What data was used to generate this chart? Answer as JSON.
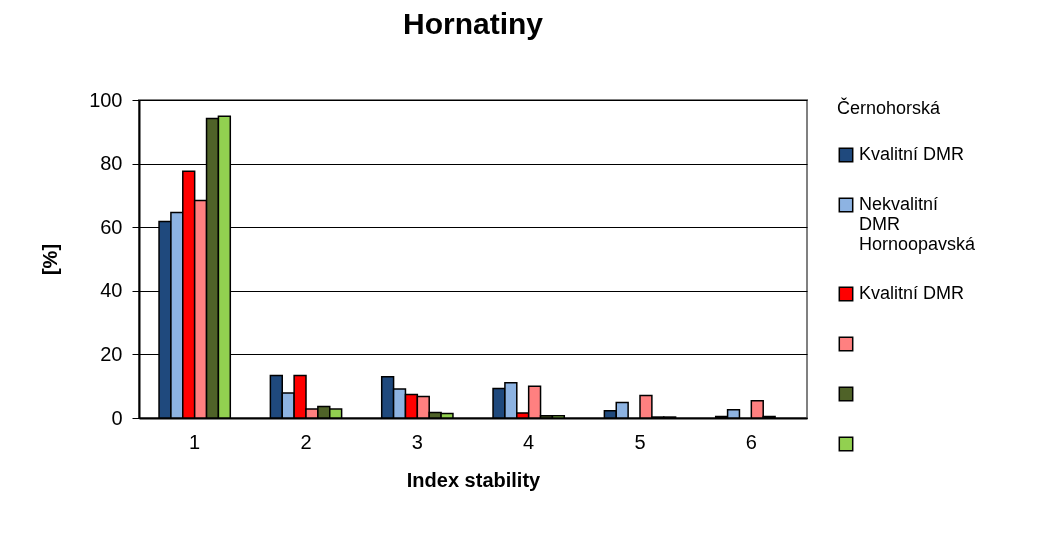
{
  "chart_data": {
    "type": "bar",
    "title": "Hornatiny",
    "xlabel": "Index stability",
    "ylabel": "[%]",
    "legend_title": "Černohorská",
    "categories": [
      "1",
      "2",
      "3",
      "4",
      "5",
      "6"
    ],
    "series": [
      {
        "name": "Kvalitní DMR",
        "color": "#1f497d",
        "values": [
          61.8,
          13.4,
          13.0,
          9.3,
          2.3,
          0.5
        ]
      },
      {
        "name": "Nekvalitní DMR Hornoopavská",
        "color": "#8db3e2",
        "values": [
          64.6,
          7.9,
          9.1,
          11.1,
          4.9,
          2.6
        ]
      },
      {
        "name": "Kvalitní DMR",
        "color": "#ff0000",
        "values": [
          77.6,
          13.4,
          7.4,
          1.6,
          null,
          null
        ]
      },
      {
        "color": "#ff8080",
        "values": [
          68.4,
          2.8,
          6.8,
          10.0,
          7.1,
          5.4
        ]
      },
      {
        "color": "#4f6228",
        "values": [
          94.2,
          3.6,
          1.7,
          0.7,
          0.3,
          0.5
        ]
      },
      {
        "color": "#92d050",
        "values": [
          94.9,
          2.8,
          1.4,
          0.7,
          0.3,
          null
        ]
      }
    ],
    "ylim": [
      0,
      100
    ],
    "yticks": [
      0,
      20,
      40,
      60,
      80,
      100
    ],
    "grid": "y",
    "legend": "right"
  }
}
